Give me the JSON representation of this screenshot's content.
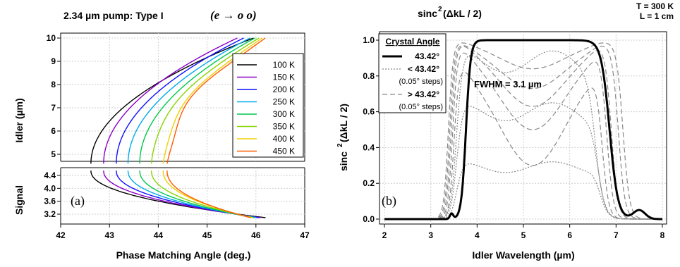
{
  "chart_data": [
    {
      "panel": "a",
      "type": "line",
      "title": "2.34 µm pump:  Type I",
      "title_math": "(e → o o)",
      "xlabel": "Phase Matching Angle (deg.)",
      "ylabel_idler": "Idler   (µm)",
      "ylabel_signal": "Signal",
      "panel_label": "(a)",
      "xlim": [
        42,
        47
      ],
      "x_ticks": [
        "42",
        "43",
        "44",
        "45",
        "46",
        "47"
      ],
      "idler_ylim": [
        4.5,
        10
      ],
      "idler_ticks": [
        "5",
        "6",
        "7",
        "8",
        "9",
        "10"
      ],
      "signal_ylim": [
        3.05,
        4.6
      ],
      "signal_ticks": [
        "3.2",
        "3.6",
        "4.0",
        "4.4"
      ],
      "grid": true,
      "legend_position": "top-right",
      "series": [
        {
          "name": "100 K",
          "color": "#000000",
          "vertex_angle": 42.62,
          "idler_end_angle": 45.95,
          "signal_end_angle": 46.25
        },
        {
          "name": "150 K",
          "color": "#8a00c8",
          "vertex_angle": 42.88,
          "idler_end_angle": 45.62,
          "signal_end_angle": 46.15
        },
        {
          "name": "200 K",
          "color": "#1010ff",
          "vertex_angle": 43.14,
          "idler_end_angle": 45.75,
          "signal_end_angle": 46.1
        },
        {
          "name": "250 K",
          "color": "#00aaee",
          "vertex_angle": 43.38,
          "idler_end_angle": 45.88,
          "signal_end_angle": 46.05
        },
        {
          "name": "300 K",
          "color": "#00c84a",
          "vertex_angle": 43.62,
          "idler_end_angle": 45.98,
          "signal_end_angle": 46.0
        },
        {
          "name": "350 K",
          "color": "#88d400",
          "vertex_angle": 43.86,
          "idler_end_angle": 46.05,
          "signal_end_angle": 45.98
        },
        {
          "name": "400 K",
          "color": "#f0d000",
          "vertex_angle": 44.1,
          "idler_end_angle": 46.1,
          "signal_end_angle": 45.95
        },
        {
          "name": "450 K",
          "color": "#ff5a00",
          "vertex_angle": 44.18,
          "idler_end_angle": 46.15,
          "signal_end_angle": 45.92
        }
      ]
    },
    {
      "panel": "b",
      "type": "line",
      "title": "sinc",
      "title_sup": "2",
      "title_rest": "(ΔkL / 2)",
      "note_lines": [
        "T = 300 K",
        "L = 1 cm"
      ],
      "xlabel": "Idler Wavelength (µm)",
      "ylabel": "sinc",
      "ylabel_sup": "2",
      "ylabel_rest": "(ΔkL / 2)",
      "panel_label": "(b)",
      "annotation": "FWHM = 3.1 µm",
      "xlim": [
        2,
        8
      ],
      "ylim": [
        0,
        1.05
      ],
      "x_ticks": [
        "2",
        "3",
        "4",
        "5",
        "6",
        "7",
        "8"
      ],
      "y_ticks": [
        "0.0",
        "0.2",
        "0.4",
        "0.6",
        "0.8",
        "1.0"
      ],
      "grid": true,
      "legend": {
        "title": "Crystal Angle",
        "items": [
          "43.42°",
          "< 43.42°",
          "(0.05° steps)",
          "> 43.42°",
          "(0.05° steps)"
        ]
      },
      "main_curve": {
        "angle": "43.42°",
        "rise_half": 3.76,
        "fall_half": 6.86,
        "plateau": 1.0,
        "sidelobe_x": 7.5,
        "sidelobe_y": 0.05
      },
      "below_curves": [
        {
          "plateau": 0.88,
          "ripple": 0.06
        },
        {
          "plateau": 0.6,
          "ripple": 0.05
        },
        {
          "plateau": 0.29,
          "ripple": 0.03
        }
      ],
      "above_curves": [
        {
          "peak": 0.85,
          "end": 6.95
        },
        {
          "peak": 0.95,
          "end": 7.05
        },
        {
          "peak": 0.98,
          "end": 7.15
        },
        {
          "peak": 0.98,
          "end": 7.3
        },
        {
          "peak": 0.99,
          "end": 7.4
        }
      ]
    }
  ]
}
